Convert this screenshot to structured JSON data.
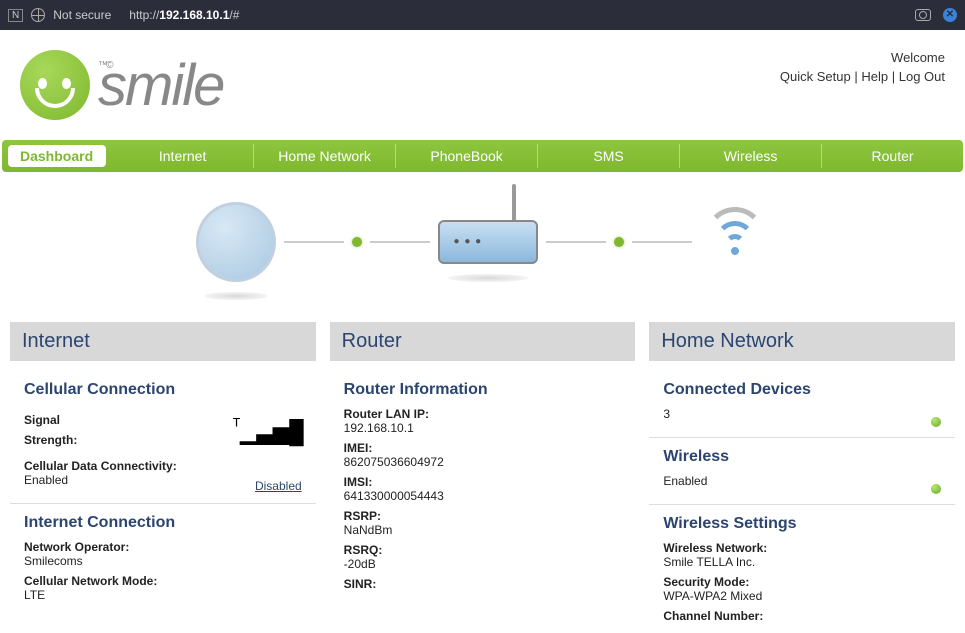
{
  "browser": {
    "not_secure": "Not secure",
    "url_prefix": "http://",
    "url_host": "192.168.10.1",
    "url_suffix": "/#"
  },
  "header": {
    "welcome": "Welcome",
    "quick_setup": "Quick Setup",
    "help": "Help",
    "logout": "Log Out",
    "logo_text": "smile"
  },
  "nav": {
    "items": [
      "Dashboard",
      "Internet",
      "Home Network",
      "PhoneBook",
      "SMS",
      "Wireless",
      "Router"
    ],
    "active_index": 0
  },
  "colors": {
    "nav_bg": "#8dc63f",
    "heading": "#2b4570",
    "panel_title_bg": "#d8d8d8"
  },
  "internet": {
    "title": "Internet",
    "cellular_conn": "Cellular Connection",
    "signal_label": "Signal",
    "strength_label": "Strength:",
    "data_conn_label": "Cellular Data Connectivity:",
    "data_conn_value": "Enabled",
    "disabled_link": "Disabled",
    "internet_conn": "Internet Connection",
    "operator_label": "Network Operator:",
    "operator_value": "Smilecoms",
    "mode_label": "Cellular Network Mode:",
    "mode_value": "LTE"
  },
  "router": {
    "title": "Router",
    "info": "Router Information",
    "lan_ip_label": "Router LAN IP:",
    "lan_ip_value": "192.168.10.1",
    "imei_label": "IMEI:",
    "imei_value": "862075036604972",
    "imsi_label": "IMSI:",
    "imsi_value": "641330000054443",
    "rsrp_label": "RSRP:",
    "rsrp_value": "NaNdBm",
    "rsrq_label": "RSRQ:",
    "rsrq_value": "-20dB",
    "sinr_label": "SINR:"
  },
  "home": {
    "title": "Home Network",
    "connected_devices": "Connected Devices",
    "device_count": "3",
    "wireless": "Wireless",
    "wireless_status": "Enabled",
    "wireless_settings": "Wireless Settings",
    "network_label": "Wireless Network:",
    "network_value": "Smile TELLA Inc.",
    "security_label": "Security Mode:",
    "security_value": "WPA-WPA2 Mixed",
    "channel_label": "Channel Number:"
  }
}
